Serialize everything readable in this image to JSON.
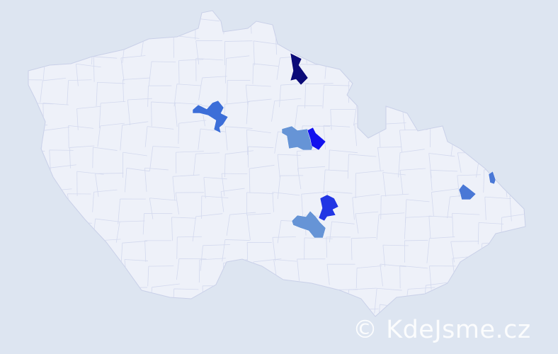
{
  "map": {
    "country_fill": "#eef1f9",
    "border_color": "#c9d0e8",
    "background": "#dde5f1",
    "highlighted_regions": [
      {
        "color": "#0b0b78"
      },
      {
        "color": "#3c6ed8"
      },
      {
        "color": "#6694d6"
      },
      {
        "color": "#1212ee"
      },
      {
        "color": "#2236e4"
      },
      {
        "color": "#6694d6"
      },
      {
        "color": "#4a78d6"
      },
      {
        "color": "#4a78d6"
      }
    ]
  },
  "watermark": {
    "text": "© KdeJsme.cz"
  }
}
